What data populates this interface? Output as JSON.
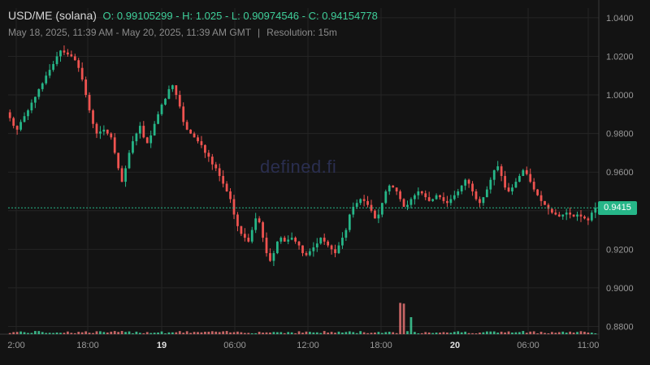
{
  "header": {
    "pair": "USD/ME (solana)",
    "open_label": "O:",
    "open": "0.99105299",
    "high_label": "H:",
    "high": "1.025",
    "low_label": "L:",
    "low": "0.90974546",
    "close_label": "C:",
    "close": "0.94154778",
    "date_range": "May 18, 2025, 11:39 AM - May 20, 2025, 11:39 AM GMT",
    "separator": "|",
    "resolution": "Resolution: 15m"
  },
  "watermark": "defined.fi",
  "current_price": "0.9415",
  "colors": {
    "up": "#26b688",
    "down": "#ef5350",
    "volume_up": "#3fcf9a",
    "volume_down": "#e57373",
    "price_line": "#26b688"
  },
  "chart_data": {
    "type": "candlestick",
    "yaxis": {
      "ticks": [
        "1.0400",
        "1.0200",
        "1.0000",
        "0.9800",
        "0.9600",
        "0.9400",
        "0.9200",
        "0.9000",
        "0.8800"
      ],
      "ylim": [
        0.876,
        1.045
      ]
    },
    "xaxis": {
      "ticks": [
        "2:00",
        "18:00",
        "19",
        "06:00",
        "12:00",
        "18:00",
        "20",
        "06:00",
        "11:00"
      ],
      "bold_ticks": [
        "19",
        "20"
      ]
    },
    "current_price": 0.9415,
    "close_series": [
      0.988,
      0.984,
      0.982,
      0.986,
      0.989,
      0.992,
      0.996,
      0.999,
      1.003,
      1.006,
      1.01,
      1.013,
      1.016,
      1.02,
      1.023,
      1.022,
      1.021,
      1.02,
      1.018,
      1.014,
      1.008,
      1.0,
      0.992,
      0.985,
      0.98,
      0.981,
      0.982,
      0.98,
      0.978,
      0.97,
      0.962,
      0.955,
      0.962,
      0.97,
      0.976,
      0.98,
      0.984,
      0.978,
      0.975,
      0.979,
      0.985,
      0.99,
      0.995,
      0.998,
      1.003,
      1.005,
      1.0,
      0.994,
      0.986,
      0.982,
      0.98,
      0.978,
      0.976,
      0.974,
      0.97,
      0.968,
      0.964,
      0.962,
      0.958,
      0.954,
      0.95,
      0.946,
      0.938,
      0.932,
      0.928,
      0.926,
      0.924,
      0.93,
      0.936,
      0.934,
      0.926,
      0.918,
      0.914,
      0.918,
      0.924,
      0.926,
      0.924,
      0.925,
      0.926,
      0.924,
      0.922,
      0.918,
      0.917,
      0.919,
      0.921,
      0.923,
      0.926,
      0.924,
      0.922,
      0.92,
      0.918,
      0.922,
      0.926,
      0.93,
      0.938,
      0.942,
      0.944,
      0.946,
      0.945,
      0.943,
      0.94,
      0.936,
      0.938,
      0.944,
      0.95,
      0.953,
      0.952,
      0.95,
      0.946,
      0.942,
      0.943,
      0.946,
      0.948,
      0.95,
      0.949,
      0.947,
      0.945,
      0.946,
      0.948,
      0.947,
      0.945,
      0.944,
      0.946,
      0.948,
      0.95,
      0.953,
      0.956,
      0.954,
      0.95,
      0.946,
      0.944,
      0.947,
      0.951,
      0.956,
      0.961,
      0.963,
      0.958,
      0.952,
      0.95,
      0.952,
      0.955,
      0.958,
      0.961,
      0.959,
      0.955,
      0.951,
      0.948,
      0.945,
      0.943,
      0.941,
      0.939,
      0.938,
      0.937,
      0.938,
      0.939,
      0.938,
      0.937,
      0.938,
      0.937,
      0.936,
      0.935,
      0.939,
      0.9415
    ]
  }
}
